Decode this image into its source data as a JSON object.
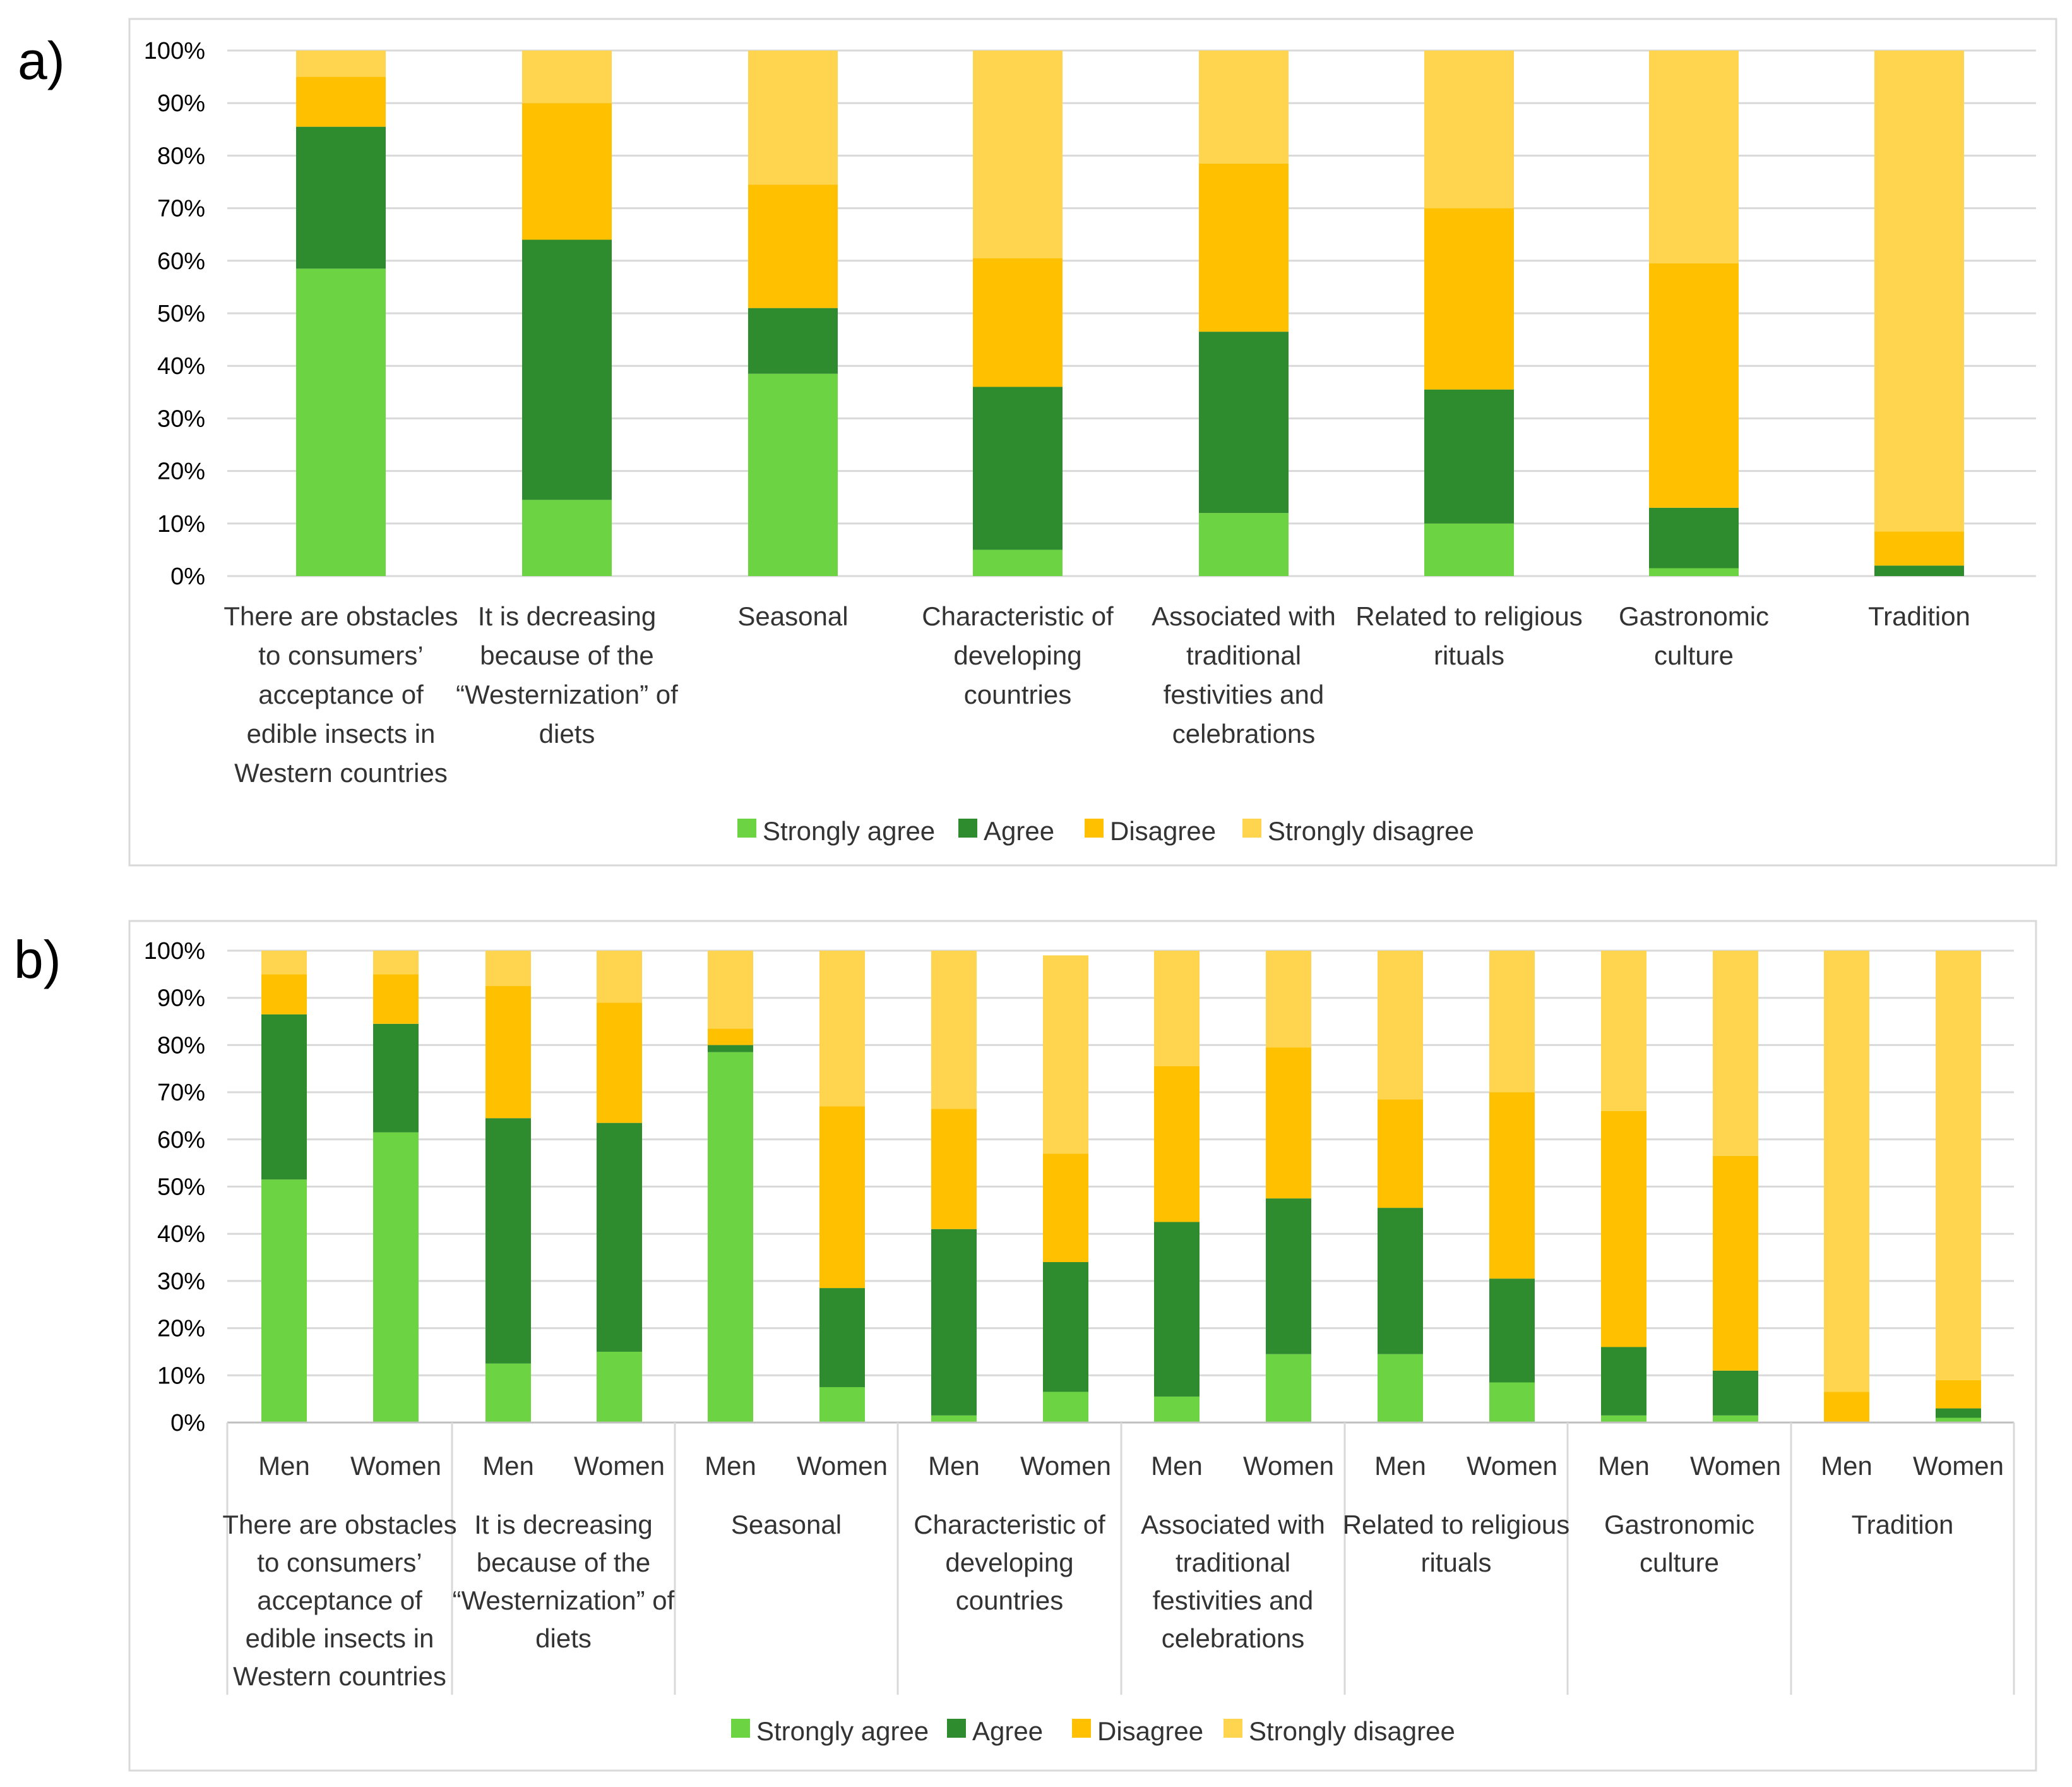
{
  "colors": {
    "strongly_agree": "#6cd442",
    "agree": "#2e8b2e",
    "disagree": "#ffc000",
    "strongly_disagree": "#ffd54f"
  },
  "chart_data": [
    {
      "panel": "a)",
      "type": "bar",
      "stacked": true,
      "percent": true,
      "ylim": [
        0,
        100
      ],
      "yticks": [
        "0%",
        "10%",
        "20%",
        "30%",
        "40%",
        "50%",
        "60%",
        "70%",
        "80%",
        "90%",
        "100%"
      ],
      "categories": [
        [
          "There are obstacles",
          "to consumers’",
          "acceptance of",
          "edible insects in",
          "Western countries"
        ],
        [
          "It is decreasing",
          "because of the",
          "“Westernization” of",
          "diets"
        ],
        [
          "Seasonal"
        ],
        [
          "Characteristic of",
          "developing",
          "countries"
        ],
        [
          "Associated with",
          "traditional",
          "festivities and",
          "celebrations"
        ],
        [
          "Related to religious",
          "rituals"
        ],
        [
          "Gastronomic",
          "culture"
        ],
        [
          "Tradition"
        ]
      ],
      "legend": [
        "Strongly agree",
        "Agree",
        "Disagree",
        "Strongly disagree"
      ],
      "series": [
        {
          "name": "Strongly agree",
          "values": [
            58.5,
            14.5,
            38.5,
            5,
            12,
            10,
            1.5,
            0
          ]
        },
        {
          "name": "Agree",
          "values": [
            27,
            49.5,
            12.5,
            31,
            34.5,
            25.5,
            11.5,
            2
          ]
        },
        {
          "name": "Disagree",
          "values": [
            9.5,
            26,
            23.5,
            24.5,
            32,
            34.5,
            46.5,
            6.5
          ]
        },
        {
          "name": "Strongly disagree",
          "values": [
            5,
            10,
            25.5,
            39.5,
            21.5,
            30,
            40.5,
            91.5
          ]
        }
      ]
    },
    {
      "panel": "b)",
      "type": "bar",
      "stacked": true,
      "percent": true,
      "ylim": [
        0,
        100
      ],
      "yticks": [
        "0%",
        "10%",
        "20%",
        "30%",
        "40%",
        "50%",
        "60%",
        "70%",
        "80%",
        "90%",
        "100%"
      ],
      "subcategories": [
        "Men",
        "Women"
      ],
      "groups": [
        [
          "There are obstacles",
          "to consumers’",
          "acceptance of",
          "edible insects in",
          "Western countries"
        ],
        [
          "It is decreasing",
          "because of the",
          "“Westernization” of",
          "diets"
        ],
        [
          "Seasonal"
        ],
        [
          "Characteristic of",
          "developing",
          "countries"
        ],
        [
          "Associated with",
          "traditional",
          "festivities and",
          "celebrations"
        ],
        [
          "Related to religious",
          "rituals"
        ],
        [
          "Gastronomic",
          "culture"
        ],
        [
          "Tradition"
        ]
      ],
      "legend": [
        "Strongly agree",
        "Agree",
        "Disagree",
        "Strongly disagree"
      ],
      "series": [
        {
          "name": "Strongly agree",
          "values": [
            51.5,
            61.5,
            12.5,
            15,
            78.5,
            7.5,
            1.5,
            6.5,
            5.5,
            14.5,
            14.5,
            8.5,
            1.5,
            1.5,
            0,
            1
          ]
        },
        {
          "name": "Agree",
          "values": [
            35,
            23,
            52,
            48.5,
            1.5,
            21,
            39.5,
            27.5,
            37,
            33,
            31,
            22,
            14.5,
            9.5,
            0,
            2
          ]
        },
        {
          "name": "Disagree",
          "values": [
            8.5,
            10.5,
            28,
            25.5,
            3.5,
            38.5,
            25.5,
            23,
            33,
            32,
            23,
            39.5,
            50,
            45.5,
            6.5,
            6
          ]
        },
        {
          "name": "Strongly disagree",
          "values": [
            5,
            5,
            7.5,
            11,
            16.5,
            33,
            33.5,
            42,
            24.5,
            20.5,
            31.5,
            30,
            34,
            43.5,
            93.5,
            91
          ]
        }
      ]
    }
  ]
}
